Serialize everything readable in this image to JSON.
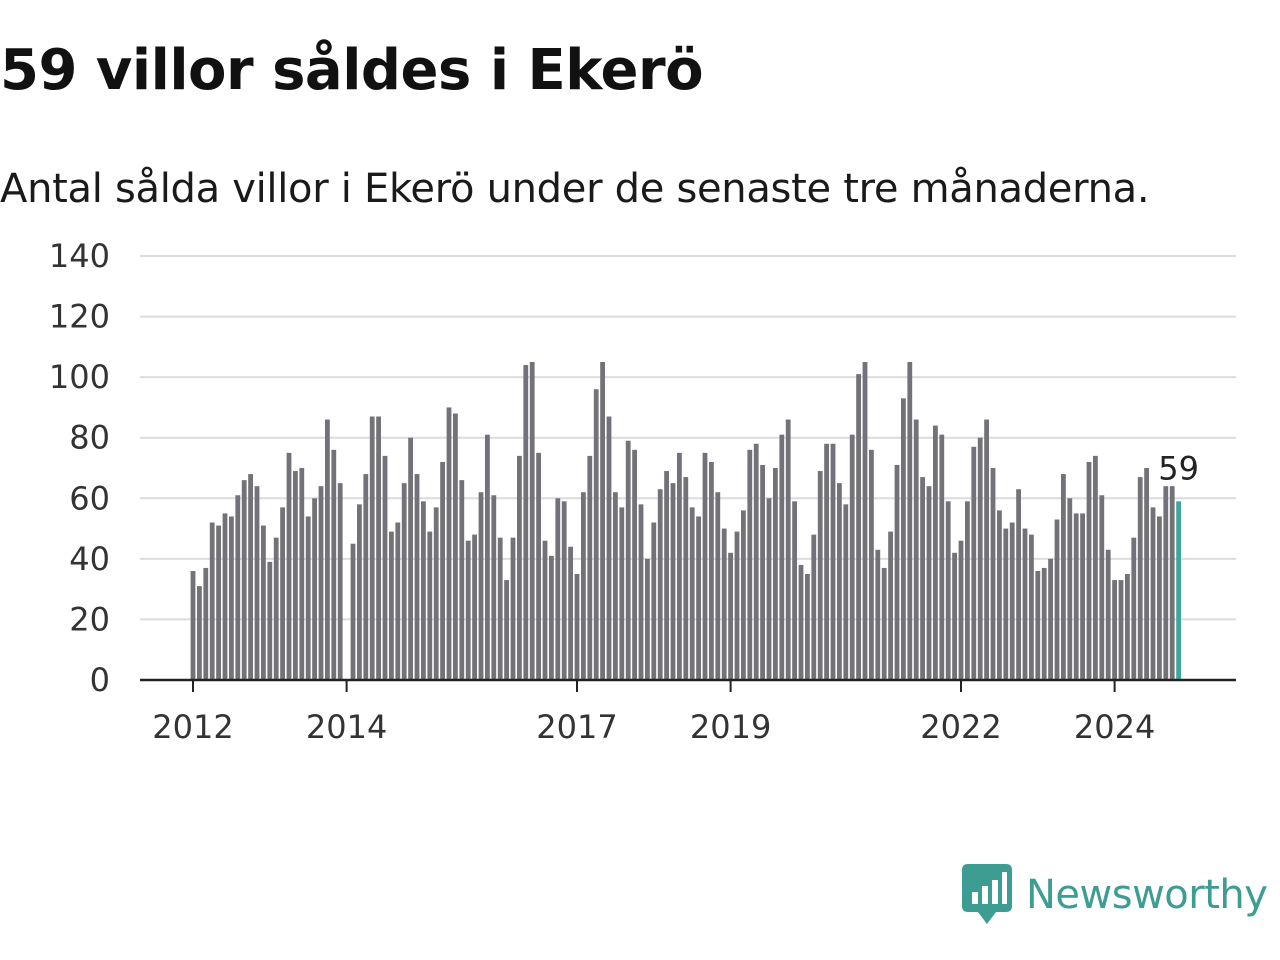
{
  "header": {
    "title": "59 villor såldes i Ekerö",
    "subtitle": "Antal sålda villor i Ekerö under de senaste tre månaderna."
  },
  "brand": {
    "name": "Newsworthy",
    "icon": "newsworthy-logo-icon",
    "color": "#3d9d93"
  },
  "chart_data": {
    "type": "bar",
    "title": "59 villor såldes i Ekerö",
    "subtitle": "Antal sålda villor i Ekerö under de senaste tre månaderna.",
    "xlabel": "",
    "ylabel": "",
    "ylim": [
      0,
      140
    ],
    "yticks": [
      0,
      20,
      40,
      60,
      80,
      100,
      120,
      140
    ],
    "xticks": [
      {
        "label": "2012",
        "index": 0
      },
      {
        "label": "2014",
        "index": 24
      },
      {
        "label": "2017",
        "index": 60
      },
      {
        "label": "2019",
        "index": 84
      },
      {
        "label": "2022",
        "index": 120
      },
      {
        "label": "2024",
        "index": 144
      }
    ],
    "grid": true,
    "bar_color": "#737278",
    "highlight_color": "#3da79c",
    "highlight_label": "59",
    "series": [
      {
        "values": [
          36,
          31,
          37,
          52,
          51,
          55,
          54,
          61,
          66,
          68,
          64,
          51,
          39,
          47,
          57,
          75,
          69,
          70,
          54,
          60,
          64,
          86,
          76,
          65,
          0,
          45,
          58,
          68,
          87,
          87,
          74,
          49,
          52,
          65,
          80,
          68,
          59,
          49,
          57,
          72,
          90,
          88,
          66,
          46,
          48,
          62,
          81,
          61,
          47,
          33,
          47,
          74,
          104,
          105,
          75,
          46,
          41,
          60,
          59,
          44,
          35,
          62,
          74,
          96,
          105,
          87,
          62,
          57,
          79,
          76,
          58,
          40,
          52,
          63,
          69,
          65,
          75,
          67,
          57,
          54,
          75,
          72,
          62,
          50,
          42,
          49,
          56,
          76,
          78,
          71,
          60,
          70,
          81,
          86,
          59,
          38,
          35,
          48,
          69,
          78,
          78,
          65,
          58,
          81,
          101,
          105,
          76,
          43,
          37,
          49,
          71,
          93,
          105,
          86,
          67,
          64,
          84,
          81,
          59,
          42,
          46,
          59,
          77,
          80,
          86,
          70,
          56,
          50,
          52,
          63,
          50,
          48,
          36,
          37,
          40,
          53,
          68,
          60,
          55,
          55,
          72,
          74,
          61,
          43,
          33,
          33,
          35,
          47,
          67,
          70,
          57,
          54,
          64,
          64,
          59
        ]
      }
    ]
  }
}
